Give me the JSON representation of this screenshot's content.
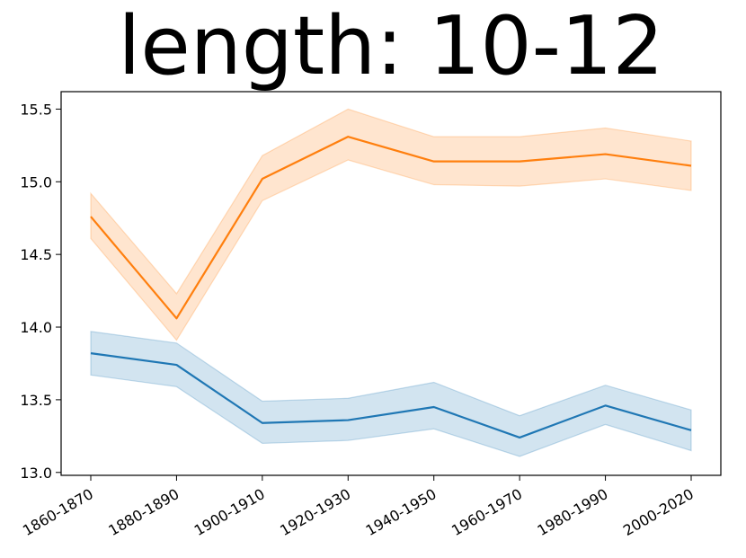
{
  "chart_data": {
    "type": "line",
    "title": "length: 10-12",
    "xlabel": "",
    "ylabel": "",
    "categories": [
      "1860-1870",
      "1880-1890",
      "1900-1910",
      "1920-1930",
      "1940-1950",
      "1960-1970",
      "1980-1990",
      "2000-2020"
    ],
    "ylim": [
      12.98,
      15.62
    ],
    "yticks": [
      13.0,
      13.5,
      14.0,
      14.5,
      15.0,
      15.5
    ],
    "ytick_labels": [
      "13.0",
      "13.5",
      "14.0",
      "14.5",
      "15.0",
      "15.5"
    ],
    "grid": false,
    "legend": null,
    "series": [
      {
        "color": "#ff7f0e",
        "band_color": "#ffd9bd",
        "values": [
          14.76,
          14.06,
          15.02,
          15.31,
          15.14,
          15.14,
          15.19,
          15.11
        ],
        "lower": [
          14.61,
          13.91,
          14.87,
          15.15,
          14.98,
          14.97,
          15.02,
          14.94
        ],
        "upper": [
          14.92,
          14.23,
          15.18,
          15.5,
          15.31,
          15.31,
          15.37,
          15.28
        ]
      },
      {
        "color": "#1f77b4",
        "band_color": "#c7dbec",
        "values": [
          13.82,
          13.74,
          13.34,
          13.36,
          13.45,
          13.24,
          13.46,
          13.29
        ],
        "lower": [
          13.67,
          13.59,
          13.2,
          13.22,
          13.3,
          13.11,
          13.33,
          13.15
        ],
        "upper": [
          13.97,
          13.89,
          13.49,
          13.51,
          13.62,
          13.39,
          13.6,
          13.43
        ]
      }
    ]
  }
}
